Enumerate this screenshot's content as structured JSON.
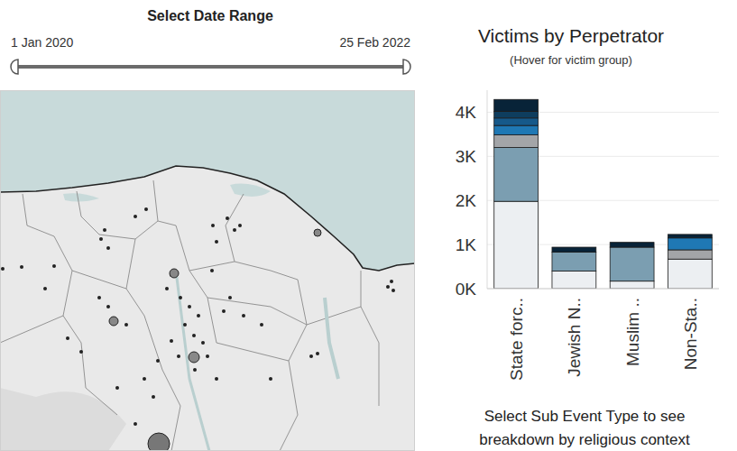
{
  "date_range": {
    "title": "Select Date Range",
    "start": "1 Jan 2020",
    "end": "25 Feb 2022"
  },
  "chart_data": {
    "type": "bar",
    "title": "Victims by Perpetrator",
    "subtitle": "(Hover for victim group)",
    "categories": [
      "State forc..",
      "Jewish N..",
      "Muslim ..",
      "Non-Sta.."
    ],
    "stacked": true,
    "grid": true,
    "ylim": [
      0,
      4500
    ],
    "yticks": [
      {
        "value": 0,
        "label": "0K"
      },
      {
        "value": 1000,
        "label": "1K"
      },
      {
        "value": 2000,
        "label": "2K"
      },
      {
        "value": 3000,
        "label": "3K"
      },
      {
        "value": 4000,
        "label": "4K"
      }
    ],
    "series": [
      {
        "color": "#eceff2",
        "values": [
          1980,
          400,
          170,
          670
        ]
      },
      {
        "color": "#7b9eb1",
        "values": [
          1220,
          430,
          770,
          0
        ]
      },
      {
        "color": "#a3a5a8",
        "values": [
          290,
          0,
          0,
          210
        ]
      },
      {
        "color": "#1f78b4",
        "values": [
          210,
          0,
          0,
          270
        ]
      },
      {
        "color": "#16598a",
        "values": [
          170,
          0,
          0,
          0
        ]
      },
      {
        "color": "#0e3d5e",
        "values": [
          150,
          0,
          0,
          0
        ]
      },
      {
        "color": "#082338",
        "values": [
          270,
          110,
          110,
          80
        ]
      }
    ]
  },
  "footer": {
    "lines": [
      "Select Sub Event Type to see",
      "breakdown by religious context"
    ]
  }
}
